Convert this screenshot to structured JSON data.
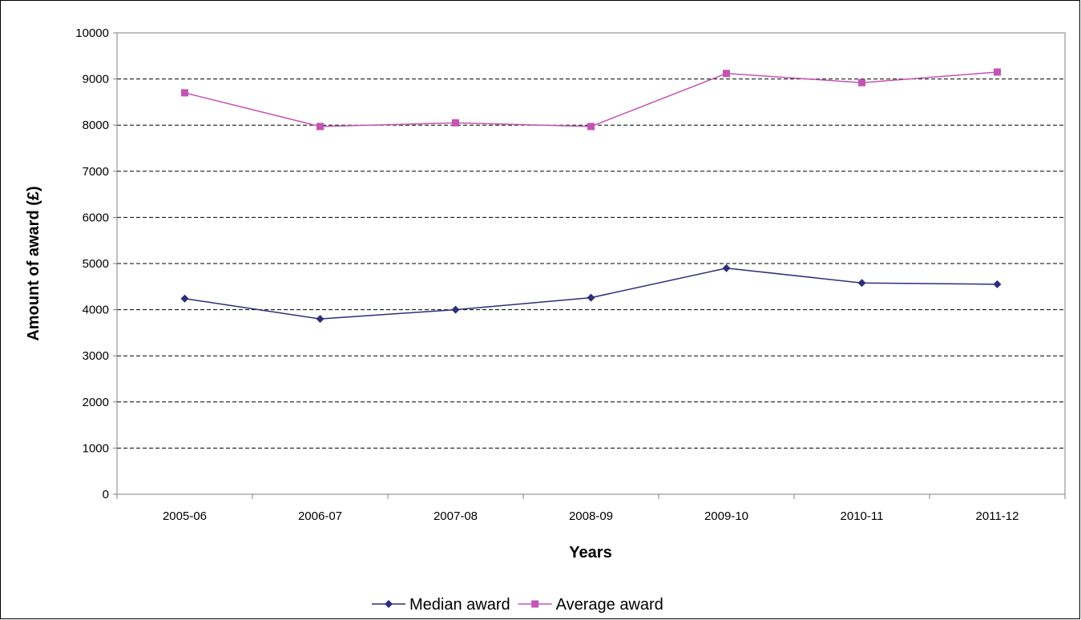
{
  "chart_data": {
    "type": "line",
    "title": "",
    "xlabel": "Years",
    "ylabel": "Amount of award (£)",
    "categories": [
      "2005-06",
      "2006-07",
      "2007-08",
      "2008-09",
      "2009-10",
      "2010-11",
      "2011-12"
    ],
    "ylim": [
      0,
      10000
    ],
    "yticks": [
      0,
      1000,
      2000,
      3000,
      4000,
      5000,
      6000,
      7000,
      8000,
      9000,
      10000
    ],
    "grid": "horizontal dashed",
    "legend_position": "bottom",
    "series": [
      {
        "name": "Median award",
        "marker": "diamond",
        "color": "#2e2e7a",
        "values": [
          4240,
          3800,
          4000,
          4260,
          4900,
          4580,
          4550
        ]
      },
      {
        "name": "Average award",
        "marker": "square",
        "color": "#c354b5",
        "values": [
          8700,
          7970,
          8050,
          7970,
          9120,
          8920,
          9150
        ]
      }
    ]
  }
}
